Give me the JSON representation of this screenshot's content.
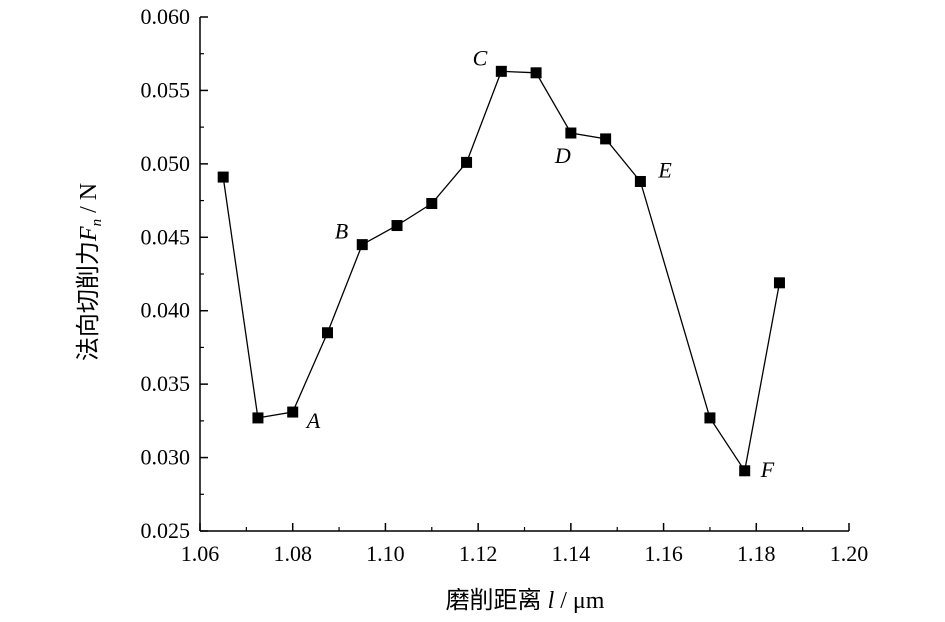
{
  "chart_data": {
    "type": "line",
    "xlabel": "磨削距离 l / μm",
    "xlabel_parts": {
      "main": "磨削距离 ",
      "var": "l",
      "unit": " / μm"
    },
    "ylabel": "法向切削力 Fn / N",
    "ylabel_parts": {
      "main": "法向切削力",
      "var": "F",
      "sub": "n",
      "unit": " / N"
    },
    "xlim": [
      1.06,
      1.2
    ],
    "ylim": [
      0.025,
      0.06
    ],
    "xticks": [
      "1.06",
      "1.08",
      "1.10",
      "1.12",
      "1.14",
      "1.16",
      "1.18",
      "1.20"
    ],
    "yticks": [
      "0.025",
      "0.030",
      "0.035",
      "0.040",
      "0.045",
      "0.050",
      "0.055",
      "0.060"
    ],
    "grid": false,
    "series": [
      {
        "marker": "square",
        "color": "#000000",
        "x": [
          1.065,
          1.0725,
          1.08,
          1.0875,
          1.095,
          1.1025,
          1.11,
          1.1175,
          1.125,
          1.1325,
          1.14,
          1.1475,
          1.155,
          1.17,
          1.1775,
          1.185
        ],
        "y": [
          0.0491,
          0.0327,
          0.0331,
          0.0385,
          0.0445,
          0.0458,
          0.0473,
          0.0501,
          0.0563,
          0.0562,
          0.0521,
          0.0517,
          0.0488,
          0.0327,
          0.0291,
          0.0419
        ]
      }
    ],
    "annotations": [
      {
        "text": "A",
        "x": 1.08,
        "y": 0.0331,
        "pos": "right-below"
      },
      {
        "text": "B",
        "x": 1.095,
        "y": 0.0445,
        "pos": "left-above"
      },
      {
        "text": "C",
        "x": 1.125,
        "y": 0.0563,
        "pos": "left-above"
      },
      {
        "text": "D",
        "x": 1.14,
        "y": 0.0521,
        "pos": "below"
      },
      {
        "text": "E",
        "x": 1.155,
        "y": 0.0488,
        "pos": "right-above"
      },
      {
        "text": "F",
        "x": 1.1775,
        "y": 0.0291,
        "pos": "right"
      }
    ]
  }
}
